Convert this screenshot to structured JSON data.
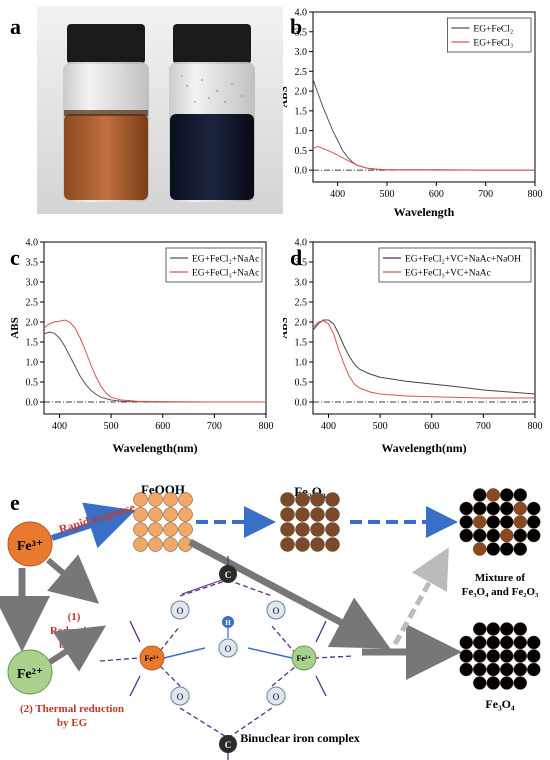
{
  "panels": {
    "a": "a",
    "b": "b",
    "c": "c",
    "d": "d",
    "e": "e"
  },
  "charts": [
    {
      "id": "b",
      "type": "line",
      "xlabel": "Wavelength",
      "ylabel": "ABS",
      "xlim": [
        350,
        800
      ],
      "ylim": [
        -0.3,
        4.0
      ],
      "xticks": [
        "400",
        "500",
        "600",
        "700",
        "800"
      ],
      "yticks": [
        "0.0",
        "0.5",
        "1.0",
        "1.5",
        "2.0",
        "2.5",
        "3.0",
        "3.5",
        "4.0"
      ],
      "series": [
        {
          "name": "EG+FeCl₂",
          "color": "#555555",
          "x": [
            350,
            360,
            370,
            380,
            390,
            400,
            410,
            420,
            430,
            440,
            460,
            480,
            500,
            600,
            700,
            800
          ],
          "y": [
            2.3,
            1.95,
            1.6,
            1.3,
            1.0,
            0.75,
            0.5,
            0.33,
            0.2,
            0.12,
            0.05,
            0.02,
            0.01,
            0.01,
            0.0,
            0.0
          ]
        },
        {
          "name": "EG+FeCl₃",
          "color": "#d9534f",
          "x": [
            350,
            360,
            380,
            400,
            420,
            440,
            460,
            480,
            500,
            600,
            700,
            800
          ],
          "y": [
            0.55,
            0.6,
            0.5,
            0.38,
            0.25,
            0.12,
            0.05,
            0.02,
            0.01,
            0.0,
            0.0,
            0.0
          ]
        }
      ]
    },
    {
      "id": "c",
      "type": "line",
      "xlabel": "Wavelength(nm)",
      "ylabel": "ABS",
      "xlim": [
        370,
        800
      ],
      "ylim": [
        -0.3,
        4.0
      ],
      "xticks": [
        "400",
        "500",
        "600",
        "700",
        "800"
      ],
      "yticks": [
        "0.0",
        "0.5",
        "1.0",
        "1.5",
        "2.0",
        "2.5",
        "3.0",
        "3.5",
        "4.0"
      ],
      "series": [
        {
          "name": "EG+FeCl₂+NaAc",
          "color": "#555555",
          "x": [
            370,
            380,
            390,
            400,
            410,
            420,
            430,
            440,
            450,
            460,
            470,
            480,
            500,
            520,
            550,
            600,
            700,
            800
          ],
          "y": [
            1.7,
            1.75,
            1.72,
            1.6,
            1.4,
            1.15,
            0.9,
            0.65,
            0.45,
            0.3,
            0.2,
            0.12,
            0.05,
            0.02,
            0.01,
            0.0,
            0.0,
            0.0
          ]
        },
        {
          "name": "EG+FeCl₃+NaAc",
          "color": "#d9534f",
          "x": [
            370,
            380,
            390,
            400,
            410,
            420,
            430,
            440,
            450,
            460,
            470,
            480,
            490,
            500,
            520,
            550,
            600,
            700,
            800
          ],
          "y": [
            1.85,
            1.95,
            2.0,
            2.02,
            2.05,
            2.0,
            1.85,
            1.6,
            1.3,
            0.95,
            0.65,
            0.4,
            0.22,
            0.12,
            0.05,
            0.02,
            0.01,
            0.0,
            0.0
          ]
        }
      ]
    },
    {
      "id": "d",
      "type": "line",
      "xlabel": "Wavelength(nm)",
      "ylabel": "ABS",
      "xlim": [
        370,
        800
      ],
      "ylim": [
        -0.3,
        4.0
      ],
      "xticks": [
        "400",
        "500",
        "600",
        "700",
        "800"
      ],
      "yticks": [
        "0.0",
        "0.5",
        "1.0",
        "1.5",
        "2.0",
        "2.5",
        "3.0",
        "3.5",
        "4.0"
      ],
      "series": [
        {
          "name": "EG+FeCl₂+VC+NaAc+NaOH",
          "color": "#444444",
          "x": [
            370,
            380,
            390,
            400,
            410,
            420,
            430,
            440,
            450,
            460,
            480,
            500,
            550,
            600,
            650,
            700,
            750,
            800
          ],
          "y": [
            1.8,
            1.95,
            2.05,
            2.05,
            1.95,
            1.7,
            1.4,
            1.15,
            0.95,
            0.82,
            0.7,
            0.62,
            0.52,
            0.45,
            0.38,
            0.3,
            0.25,
            0.2
          ]
        },
        {
          "name": "EG+FeCl₃+VC+NaAc",
          "color": "#d9534f",
          "x": [
            370,
            380,
            390,
            400,
            410,
            420,
            430,
            440,
            450,
            460,
            480,
            500,
            550,
            600,
            700,
            800
          ],
          "y": [
            1.85,
            2.0,
            2.03,
            1.95,
            1.7,
            1.3,
            0.95,
            0.65,
            0.45,
            0.35,
            0.25,
            0.2,
            0.15,
            0.13,
            0.1,
            0.1
          ]
        }
      ]
    }
  ],
  "scheme": {
    "fe3": "Fe³⁺",
    "fe2": "Fe²⁺",
    "rapid": "Rapid response",
    "reduction_vc_1": "(1)",
    "reduction_vc_2": "Reduction",
    "reduction_vc_3": "by VC",
    "thermal_1": "(2) Thermal reduction",
    "thermal_2": "by EG",
    "feooh": "FeOOH",
    "fe2o3": "Fe₂O₃",
    "mixture_1": "Mixture of",
    "mixture_2": "Fe₃O₄ and Fe₂O₃",
    "fe3o4": "Fe₃O₄",
    "binuclear": "Binuclear iron complex",
    "complex_fe3": "Fe³⁺",
    "complex_fe2": "Fe²⁺",
    "atom_c": "C",
    "atom_o": "O",
    "atom_h": "H",
    "colors": {
      "fe3": "#e8792e",
      "fe2": "#a9d18e",
      "feooh": "#f0a868",
      "fe2o3": "#7a4a2a",
      "fe3o4": "#000000",
      "arrow_blue": "#3a6fc8",
      "arrow_gray": "#777777",
      "text_red": "#c0392b",
      "bond_purple": "#5b2c8a"
    }
  }
}
